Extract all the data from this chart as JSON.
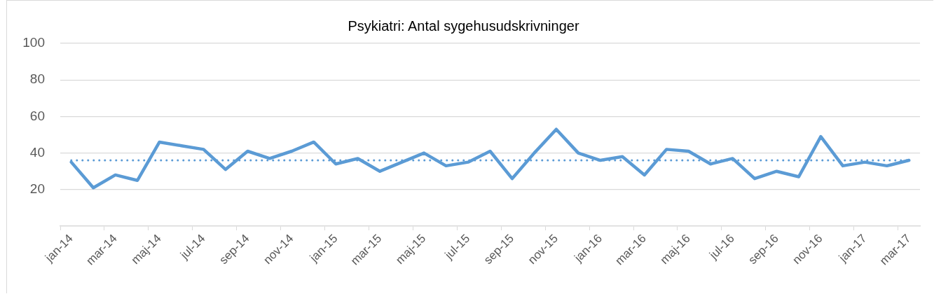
{
  "chart_data": {
    "type": "line",
    "title": "Psykiatri: Antal sygehusudskrivninger",
    "categories": [
      "jan-14",
      null,
      "mar-14",
      null,
      "maj-14",
      null,
      "jul-14",
      null,
      "sep-14",
      null,
      "nov-14",
      null,
      "jan-15",
      null,
      "mar-15",
      null,
      "maj-15",
      null,
      "jul-15",
      null,
      "sep-15",
      null,
      "nov-15",
      null,
      "jan-16",
      null,
      "mar-16",
      null,
      "maj-16",
      null,
      "jul-16",
      null,
      "sep-16",
      null,
      "nov-16",
      null,
      "jan-17",
      null,
      "mar-17"
    ],
    "series": [
      {
        "color": "#5b9bd5",
        "values": [
          35,
          21,
          28,
          25,
          46,
          44,
          42,
          31,
          41,
          37,
          41,
          46,
          34,
          37,
          30,
          35,
          40,
          33,
          35,
          41,
          26,
          40,
          53,
          40,
          36,
          38,
          28,
          42,
          41,
          34,
          37,
          26,
          30,
          27,
          49,
          33,
          35,
          33,
          36
        ]
      }
    ],
    "ref_lines": [
      {
        "axis": "y",
        "value": 36,
        "color": "#5b9bd5",
        "line_style": "dotted"
      }
    ],
    "ylim": [
      0,
      100
    ],
    "yticks": [
      20,
      40,
      60,
      80,
      100
    ],
    "grid": "y",
    "marker": "none",
    "line_style": "solid"
  }
}
